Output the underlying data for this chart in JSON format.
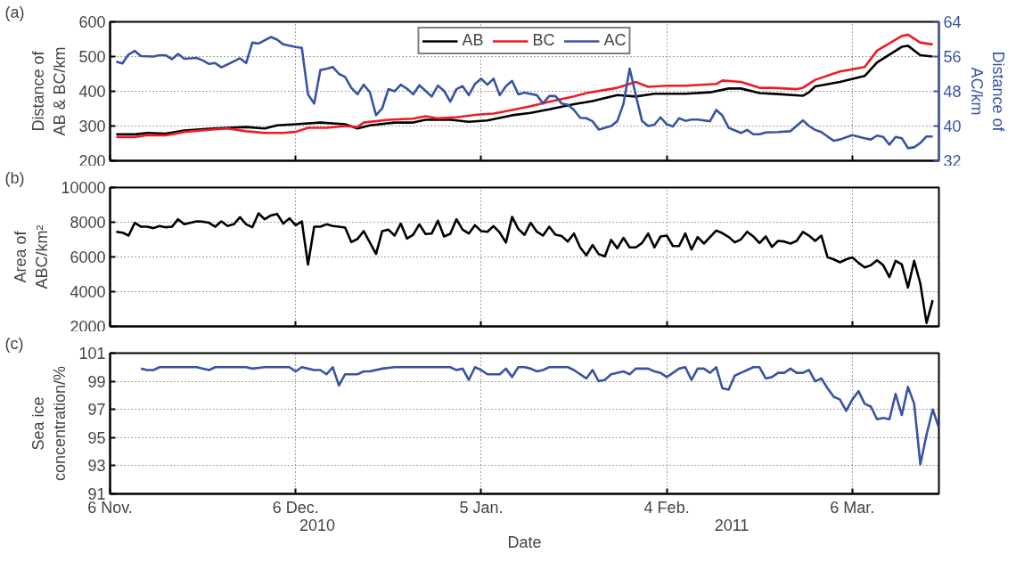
{
  "chart_data": [
    {
      "type": "line",
      "ylabel": "Distance of\nAB & BC/km",
      "y2label": "Distance of\nAC/km",
      "annotations": [
        "(a)"
      ],
      "legend": "top",
      "grid": true,
      "tick_labels": "y",
      "xlim": [
        "2010-11-06",
        "2011-03-20"
      ],
      "xticks": [
        {
          "value": "2010-11-06",
          "label": null
        },
        {
          "value": "2010-12-06",
          "label": null
        },
        {
          "value": "2011-01-05",
          "label": null
        },
        {
          "value": "2011-02-04",
          "label": null
        },
        {
          "value": "2011-03-06",
          "label": null
        }
      ],
      "ylim": [
        200,
        600
      ],
      "yticks": [
        200,
        300,
        400,
        500,
        600
      ],
      "y2lim": [
        32,
        64
      ],
      "y2ticks": [
        32,
        40,
        48,
        56,
        64
      ],
      "series": [
        {
          "name": "AB",
          "color": "#000000",
          "x": [
            "2010-11-07",
            "2010-11-10",
            "2010-11-12",
            "2010-11-15",
            "2010-11-18",
            "2010-11-22",
            "2010-11-25",
            "2010-11-28",
            "2010-12-01",
            "2010-12-03",
            "2010-12-06",
            "2010-12-10",
            "2010-12-14",
            "2010-12-16",
            "2010-12-18",
            "2010-12-22",
            "2010-12-25",
            "2010-12-27",
            "2010-12-31",
            "2011-01-03",
            "2011-01-06",
            "2011-01-10",
            "2011-01-13",
            "2011-01-16",
            "2011-01-20",
            "2011-01-23",
            "2011-01-27",
            "2011-01-30",
            "2011-02-02",
            "2011-02-07",
            "2011-02-11",
            "2011-02-14",
            "2011-02-16",
            "2011-02-19",
            "2011-02-22",
            "2011-02-26",
            "2011-02-27",
            "2011-02-28",
            "2011-03-04",
            "2011-03-08",
            "2011-03-10",
            "2011-03-14",
            "2011-03-15",
            "2011-03-17",
            "2011-03-19"
          ],
          "values": [
            276,
            276,
            280,
            278,
            287,
            292,
            295,
            297,
            293,
            302,
            305,
            310,
            305,
            293,
            302,
            310,
            310,
            318,
            318,
            312,
            316,
            331,
            338,
            348,
            363,
            372,
            389,
            385,
            393,
            393,
            397,
            408,
            408,
            395,
            392,
            387,
            397,
            414,
            427,
            444,
            483,
            528,
            531,
            504,
            500
          ]
        },
        {
          "name": "BC",
          "color": "#ed1c24",
          "x": [
            "2010-11-07",
            "2010-11-10",
            "2010-11-12",
            "2010-11-15",
            "2010-11-18",
            "2010-11-22",
            "2010-11-25",
            "2010-11-28",
            "2010-12-01",
            "2010-12-04",
            "2010-12-06",
            "2010-12-08",
            "2010-12-11",
            "2010-12-14",
            "2010-12-16",
            "2010-12-17",
            "2010-12-21",
            "2010-12-25",
            "2010-12-27",
            "2010-12-29",
            "2011-01-01",
            "2011-01-04",
            "2011-01-07",
            "2011-01-10",
            "2011-01-13",
            "2011-01-16",
            "2011-01-20",
            "2011-01-22",
            "2011-01-27",
            "2011-01-30",
            "2011-02-01",
            "2011-02-04",
            "2011-02-07",
            "2011-02-12",
            "2011-02-13",
            "2011-02-16",
            "2011-02-19",
            "2011-02-21",
            "2011-02-25",
            "2011-02-26",
            "2011-02-28",
            "2011-03-04",
            "2011-03-08",
            "2011-03-10",
            "2011-03-14",
            "2011-03-15",
            "2011-03-17",
            "2011-03-19"
          ],
          "values": [
            268,
            268,
            274,
            273,
            283,
            289,
            293,
            285,
            280,
            280,
            283,
            295,
            295,
            300,
            297,
            310,
            318,
            321,
            328,
            322,
            325,
            332,
            336,
            346,
            357,
            370,
            385,
            395,
            410,
            427,
            413,
            416,
            416,
            421,
            431,
            427,
            410,
            410,
            406,
            410,
            433,
            457,
            470,
            517,
            559,
            563,
            540,
            535
          ]
        },
        {
          "name": "AC",
          "color": "#3953a4",
          "axis": "y2",
          "x": [
            "2010-11-07",
            "2010-11-08",
            "2010-11-09",
            "2010-11-10",
            "2010-11-11",
            "2010-11-13",
            "2010-11-14",
            "2010-11-15",
            "2010-11-16",
            "2010-11-17",
            "2010-11-18",
            "2010-11-20",
            "2010-11-21",
            "2010-11-22",
            "2010-11-23",
            "2010-11-24",
            "2010-11-26",
            "2010-11-27",
            "2010-11-28",
            "2010-11-29",
            "2010-11-30",
            "2010-12-02",
            "2010-12-03",
            "2010-12-04",
            "2010-12-05",
            "2010-12-06",
            "2010-12-07",
            "2010-12-08",
            "2010-12-09",
            "2010-12-10",
            "2010-12-11",
            "2010-12-12",
            "2010-12-13",
            "2010-12-14",
            "2010-12-15",
            "2010-12-16",
            "2010-12-17",
            "2010-12-18",
            "2010-12-19",
            "2010-12-20",
            "2010-12-21",
            "2010-12-22",
            "2010-12-23",
            "2010-12-24",
            "2010-12-25",
            "2010-12-26",
            "2010-12-27",
            "2010-12-28",
            "2010-12-29",
            "2010-12-30",
            "2010-12-31",
            "2011-01-01",
            "2011-01-02",
            "2011-01-03",
            "2011-01-04",
            "2011-01-05",
            "2011-01-06",
            "2011-01-07",
            "2011-01-08",
            "2011-01-09",
            "2011-01-10",
            "2011-01-11",
            "2011-01-12",
            "2011-01-14",
            "2011-01-15",
            "2011-01-16",
            "2011-01-17",
            "2011-01-18",
            "2011-01-19",
            "2011-01-20",
            "2011-01-21",
            "2011-01-22",
            "2011-01-23",
            "2011-01-24",
            "2011-01-26",
            "2011-01-27",
            "2011-01-28",
            "2011-01-29",
            "2011-01-30",
            "2011-01-31",
            "2011-02-01",
            "2011-02-02",
            "2011-02-03",
            "2011-02-04",
            "2011-02-05",
            "2011-02-06",
            "2011-02-07",
            "2011-02-08",
            "2011-02-09",
            "2011-02-11",
            "2011-02-12",
            "2011-02-13",
            "2011-02-14",
            "2011-02-16",
            "2011-02-17",
            "2011-02-18",
            "2011-02-19",
            "2011-02-20",
            "2011-02-22",
            "2011-02-24",
            "2011-02-26",
            "2011-02-27",
            "2011-02-28",
            "2011-03-01",
            "2011-03-02",
            "2011-03-03",
            "2011-03-04",
            "2011-03-06",
            "2011-03-08",
            "2011-03-09",
            "2011-03-10",
            "2011-03-11",
            "2011-03-12",
            "2011-03-13",
            "2011-03-14",
            "2011-03-15",
            "2011-03-16",
            "2011-03-17",
            "2011-03-18",
            "2011-03-19"
          ],
          "values": [
            54.8,
            54.4,
            56.5,
            57.3,
            56.1,
            56.0,
            56.3,
            56.3,
            55.4,
            56.6,
            55.5,
            55.7,
            55.1,
            54.3,
            54.5,
            53.5,
            54.9,
            55.6,
            54.5,
            59.2,
            59.0,
            60.5,
            59.9,
            58.8,
            58.5,
            58.2,
            58.0,
            47.3,
            45.2,
            52.9,
            53.2,
            53.6,
            52.0,
            51.3,
            48.8,
            47.3,
            49.5,
            47.8,
            42.5,
            44.1,
            48.5,
            48.0,
            49.5,
            48.6,
            47.3,
            49.4,
            48.1,
            46.8,
            49.3,
            48.1,
            45.6,
            48.5,
            49.2,
            47.1,
            49.7,
            50.9,
            49.5,
            50.9,
            47.1,
            49.2,
            50.4,
            47.3,
            47.7,
            47.1,
            45.2,
            46.9,
            46.9,
            45.2,
            44.9,
            43.7,
            41.9,
            41.8,
            41.1,
            39.2,
            40.0,
            41.1,
            45.1,
            53.2,
            47.1,
            41.2,
            40.0,
            40.3,
            42.0,
            40.4,
            39.9,
            41.8,
            41.2,
            41.5,
            41.5,
            41.1,
            43.7,
            42.4,
            39.6,
            38.4,
            39.1,
            38.1,
            38.1,
            38.5,
            38.6,
            38.8,
            41.3,
            40.0,
            39.1,
            38.6,
            37.6,
            36.6,
            36.9,
            37.9,
            37.2,
            36.9,
            37.8,
            37.5,
            35.7,
            37.5,
            37.2,
            34.9,
            35.1,
            36.1,
            37.6,
            37.6
          ]
        }
      ]
    },
    {
      "type": "line",
      "ylabel": "Area of\nABC/km²",
      "annotations": [
        "(b)"
      ],
      "grid": true,
      "tick_labels": "y",
      "xlim": [
        "2010-11-06",
        "2011-03-20"
      ],
      "xticks": [
        {
          "value": "2010-11-06",
          "label": null
        },
        {
          "value": "2010-12-06",
          "label": null
        },
        {
          "value": "2011-01-05",
          "label": null
        },
        {
          "value": "2011-02-04",
          "label": null
        },
        {
          "value": "2011-03-06",
          "label": null
        }
      ],
      "ylim": [
        2000,
        10000
      ],
      "yticks": [
        2000,
        4000,
        6000,
        8000,
        10000
      ],
      "series": [
        {
          "color": "#000000",
          "x": [
            "2010-11-07",
            "2010-11-08",
            "2010-11-09",
            "2010-11-10",
            "2010-11-11",
            "2010-11-12",
            "2010-11-13",
            "2010-11-14",
            "2010-11-15",
            "2010-11-16",
            "2010-11-17",
            "2010-11-18",
            "2010-11-20",
            "2010-11-21",
            "2010-11-22",
            "2010-11-23",
            "2010-11-24",
            "2010-11-25",
            "2010-11-26",
            "2010-11-27",
            "2010-11-28",
            "2010-11-29",
            "2010-11-30",
            "2010-12-01",
            "2010-12-02",
            "2010-12-03",
            "2010-12-04",
            "2010-12-05",
            "2010-12-06",
            "2010-12-07",
            "2010-12-08",
            "2010-12-09",
            "2010-12-10",
            "2010-12-11",
            "2010-12-12",
            "2010-12-13",
            "2010-12-14",
            "2010-12-15",
            "2010-12-16",
            "2010-12-17",
            "2010-12-19",
            "2010-12-20",
            "2010-12-21",
            "2010-12-22",
            "2010-12-23",
            "2010-12-24",
            "2010-12-25",
            "2010-12-26",
            "2010-12-27",
            "2010-12-28",
            "2010-12-29",
            "2010-12-30",
            "2010-12-31",
            "2011-01-01",
            "2011-01-02",
            "2011-01-03",
            "2011-01-04",
            "2011-01-05",
            "2011-01-06",
            "2011-01-07",
            "2011-01-08",
            "2011-01-09",
            "2011-01-10",
            "2011-01-11",
            "2011-01-12",
            "2011-01-13",
            "2011-01-14",
            "2011-01-15",
            "2011-01-16",
            "2011-01-17",
            "2011-01-18",
            "2011-01-19",
            "2011-01-20",
            "2011-01-21",
            "2011-01-22",
            "2011-01-23",
            "2011-01-24",
            "2011-01-25",
            "2011-01-26",
            "2011-01-27",
            "2011-01-28",
            "2011-01-29",
            "2011-01-30",
            "2011-01-31",
            "2011-02-01",
            "2011-02-02",
            "2011-02-03",
            "2011-02-04",
            "2011-02-05",
            "2011-02-06",
            "2011-02-07",
            "2011-02-08",
            "2011-02-09",
            "2011-02-10",
            "2011-02-12",
            "2011-02-13",
            "2011-02-14",
            "2011-02-15",
            "2011-02-16",
            "2011-02-17",
            "2011-02-18",
            "2011-02-19",
            "2011-02-20",
            "2011-02-21",
            "2011-02-22",
            "2011-02-23",
            "2011-02-24",
            "2011-02-25",
            "2011-02-26",
            "2011-02-27",
            "2011-02-28",
            "2011-03-01",
            "2011-03-02",
            "2011-03-03",
            "2011-03-04",
            "2011-03-05",
            "2011-03-06",
            "2011-03-07",
            "2011-03-08",
            "2011-03-09",
            "2011-03-10",
            "2011-03-11",
            "2011-03-12",
            "2011-03-13",
            "2011-03-14",
            "2011-03-15",
            "2011-03-16",
            "2011-03-17",
            "2011-03-18",
            "2011-03-19"
          ],
          "values": [
            7450,
            7400,
            7230,
            7970,
            7740,
            7740,
            7660,
            7780,
            7710,
            7740,
            8170,
            7880,
            8050,
            8030,
            7970,
            7740,
            8050,
            7780,
            7880,
            8290,
            7880,
            7710,
            8510,
            8170,
            8390,
            8480,
            7920,
            8220,
            7830,
            8050,
            5560,
            7740,
            7740,
            7880,
            7780,
            7740,
            7690,
            6860,
            7030,
            7490,
            6170,
            7490,
            7570,
            7230,
            7920,
            7060,
            7280,
            7880,
            7320,
            7350,
            8090,
            7180,
            7330,
            8170,
            7570,
            7350,
            7830,
            7490,
            7450,
            7780,
            7400,
            6830,
            8310,
            7610,
            7270,
            7970,
            7450,
            7230,
            7740,
            7280,
            7200,
            6890,
            7350,
            6550,
            6090,
            6690,
            6160,
            6040,
            6980,
            6500,
            7100,
            6550,
            6550,
            6800,
            7350,
            6550,
            7180,
            7230,
            6630,
            6630,
            7350,
            6430,
            7150,
            6770,
            7520,
            7370,
            7150,
            6840,
            7010,
            7450,
            7180,
            6800,
            7180,
            6580,
            6920,
            6890,
            6770,
            6920,
            7440,
            7230,
            6920,
            7230,
            5980,
            5860,
            5690,
            5860,
            5970,
            5660,
            5400,
            5520,
            5810,
            5520,
            4840,
            5780,
            5570,
            4240,
            5780,
            4460,
            2200,
            3510
          ]
        }
      ]
    },
    {
      "type": "line",
      "ylabel": "Sea ice\nconcentration/%",
      "xlabel": "Date",
      "annotations": [
        "(c)",
        "2010",
        "2011"
      ],
      "grid": true,
      "xlim": [
        "2010-11-06",
        "2011-03-20"
      ],
      "xticks": [
        {
          "value": "2010-11-06",
          "label": "6 Nov."
        },
        {
          "value": "2010-12-06",
          "label": "6 Dec."
        },
        {
          "value": "2011-01-05",
          "label": "5 Jan."
        },
        {
          "value": "2011-02-04",
          "label": "4 Feb."
        },
        {
          "value": "2011-03-06",
          "label": "6 Mar."
        }
      ],
      "ylim": [
        91,
        101
      ],
      "yticks": [
        91,
        93,
        95,
        97,
        99,
        101
      ],
      "series": [
        {
          "color": "#3953a4",
          "x": [
            "2010-11-11",
            "2010-11-12",
            "2010-11-13",
            "2010-11-14",
            "2010-11-16",
            "2010-11-20",
            "2010-11-22",
            "2010-11-23",
            "2010-11-25",
            "2010-11-28",
            "2010-11-29",
            "2010-12-01",
            "2010-12-03",
            "2010-12-05",
            "2010-12-06",
            "2010-12-07",
            "2010-12-08",
            "2010-12-09",
            "2010-12-10",
            "2010-12-11",
            "2010-12-12",
            "2010-12-13",
            "2010-12-14",
            "2010-12-15",
            "2010-12-16",
            "2010-12-17",
            "2010-12-18",
            "2010-12-20",
            "2010-12-22",
            "2010-12-25",
            "2010-12-27",
            "2010-12-29",
            "2010-12-31",
            "2011-01-01",
            "2011-01-02",
            "2011-01-03",
            "2011-01-04",
            "2011-01-05",
            "2011-01-06",
            "2011-01-07",
            "2011-01-08",
            "2011-01-09",
            "2011-01-10",
            "2011-01-11",
            "2011-01-12",
            "2011-01-13",
            "2011-01-14",
            "2011-01-15",
            "2011-01-16",
            "2011-01-17",
            "2011-01-19",
            "2011-01-20",
            "2011-01-22",
            "2011-01-23",
            "2011-01-24",
            "2011-01-25",
            "2011-01-26",
            "2011-01-28",
            "2011-01-29",
            "2011-01-30",
            "2011-02-01",
            "2011-02-02",
            "2011-02-03",
            "2011-02-04",
            "2011-02-05",
            "2011-02-06",
            "2011-02-07",
            "2011-02-08",
            "2011-02-09",
            "2011-02-10",
            "2011-02-11",
            "2011-02-12",
            "2011-02-13",
            "2011-02-14",
            "2011-02-15",
            "2011-02-16",
            "2011-02-17",
            "2011-02-18",
            "2011-02-19",
            "2011-02-20",
            "2011-02-21",
            "2011-02-22",
            "2011-02-23",
            "2011-02-24",
            "2011-02-25",
            "2011-02-26",
            "2011-02-27",
            "2011-02-28",
            "2011-03-01",
            "2011-03-02",
            "2011-03-03",
            "2011-03-04",
            "2011-03-05",
            "2011-03-06",
            "2011-03-07",
            "2011-03-08",
            "2011-03-09",
            "2011-03-10",
            "2011-03-11",
            "2011-03-12",
            "2011-03-13",
            "2011-03-14",
            "2011-03-15",
            "2011-03-16",
            "2011-03-17",
            "2011-03-18",
            "2011-03-19",
            "2011-03-20"
          ],
          "values": [
            99.9,
            99.8,
            99.8,
            100.0,
            100.0,
            100.0,
            99.8,
            100.0,
            100.0,
            100.0,
            99.9,
            100.0,
            100.0,
            100.0,
            99.7,
            100.0,
            99.9,
            99.8,
            99.8,
            99.5,
            100.0,
            98.7,
            99.5,
            99.5,
            99.5,
            99.7,
            99.7,
            99.9,
            100.0,
            100.0,
            100.0,
            100.0,
            100.0,
            99.8,
            99.9,
            99.1,
            100.0,
            99.8,
            99.5,
            99.5,
            99.5,
            99.9,
            99.3,
            100.0,
            100.0,
            99.9,
            99.7,
            99.8,
            100.0,
            100.0,
            100.0,
            99.8,
            99.2,
            99.8,
            99.0,
            99.1,
            99.5,
            99.7,
            99.5,
            99.9,
            99.9,
            99.7,
            99.6,
            99.3,
            99.6,
            99.9,
            100.0,
            99.1,
            99.9,
            99.9,
            99.6,
            100.0,
            98.5,
            98.4,
            99.4,
            99.6,
            99.8,
            100.0,
            100.0,
            99.2,
            99.3,
            99.6,
            99.6,
            99.9,
            99.6,
            99.6,
            99.8,
            99.0,
            99.2,
            98.5,
            97.9,
            97.7,
            96.9,
            97.7,
            98.3,
            97.4,
            97.2,
            96.3,
            96.4,
            96.3,
            98.1,
            96.6,
            98.6,
            97.4,
            93.1,
            95.2,
            97.0,
            95.7
          ]
        }
      ]
    }
  ]
}
